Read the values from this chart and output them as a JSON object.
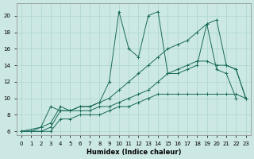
{
  "xlabel": "Humidex (Indice chaleur)",
  "bg_color": "#cce8e4",
  "grid_color": "#aad4cc",
  "line_color": "#1a6b5a",
  "xlim": [
    -0.5,
    23.5
  ],
  "ylim": [
    5.5,
    21.5
  ],
  "xticks": [
    0,
    1,
    2,
    3,
    4,
    5,
    6,
    7,
    8,
    9,
    10,
    11,
    12,
    13,
    14,
    15,
    16,
    17,
    18,
    19,
    20,
    21,
    22,
    23
  ],
  "yticks": [
    6,
    8,
    10,
    12,
    14,
    16,
    18,
    20
  ],
  "line1_x": [
    0,
    1,
    2,
    3,
    4,
    5,
    6,
    7,
    8,
    9,
    10,
    11,
    12,
    13,
    14,
    15,
    16,
    17,
    18,
    19,
    20,
    21,
    22
  ],
  "line1_y": [
    6,
    6,
    6.5,
    9,
    8.5,
    8.5,
    9,
    9,
    9.5,
    12,
    20.5,
    16,
    15,
    20,
    20.5,
    13,
    13,
    13.5,
    14,
    19,
    13.5,
    13,
    10
  ],
  "line2_x": [
    0,
    2,
    3,
    4,
    5,
    6,
    7,
    8,
    9,
    10,
    11,
    12,
    13,
    14,
    15,
    16,
    17,
    18,
    19,
    20,
    21,
    22,
    23
  ],
  "line2_y": [
    6,
    6.5,
    7,
    9,
    8.5,
    9,
    9,
    9.5,
    10,
    11,
    12,
    13,
    14,
    15,
    16,
    16.5,
    17,
    18,
    19,
    19.5,
    14,
    13.5,
    10
  ],
  "line3_x": [
    0,
    2,
    3,
    4,
    5,
    6,
    7,
    8,
    9,
    10,
    11,
    12,
    13,
    14,
    15,
    16,
    17,
    18,
    19,
    20,
    21,
    22,
    23
  ],
  "line3_y": [
    6,
    6,
    6.5,
    8.5,
    8.5,
    8.5,
    8.5,
    9,
    9,
    9.5,
    10,
    10.5,
    11,
    12,
    13,
    13.5,
    14,
    14.5,
    14.5,
    14,
    14,
    13.5,
    10
  ],
  "line4_x": [
    0,
    2,
    3,
    4,
    5,
    6,
    7,
    8,
    9,
    10,
    11,
    12,
    13,
    14,
    15,
    16,
    17,
    18,
    19,
    20,
    21,
    22,
    23
  ],
  "line4_y": [
    6,
    6,
    6,
    7.5,
    7.5,
    8,
    8,
    8,
    8.5,
    9,
    9,
    9.5,
    10,
    10.5,
    10.5,
    10.5,
    10.5,
    10.5,
    10.5,
    10.5,
    10.5,
    10.5,
    10
  ]
}
